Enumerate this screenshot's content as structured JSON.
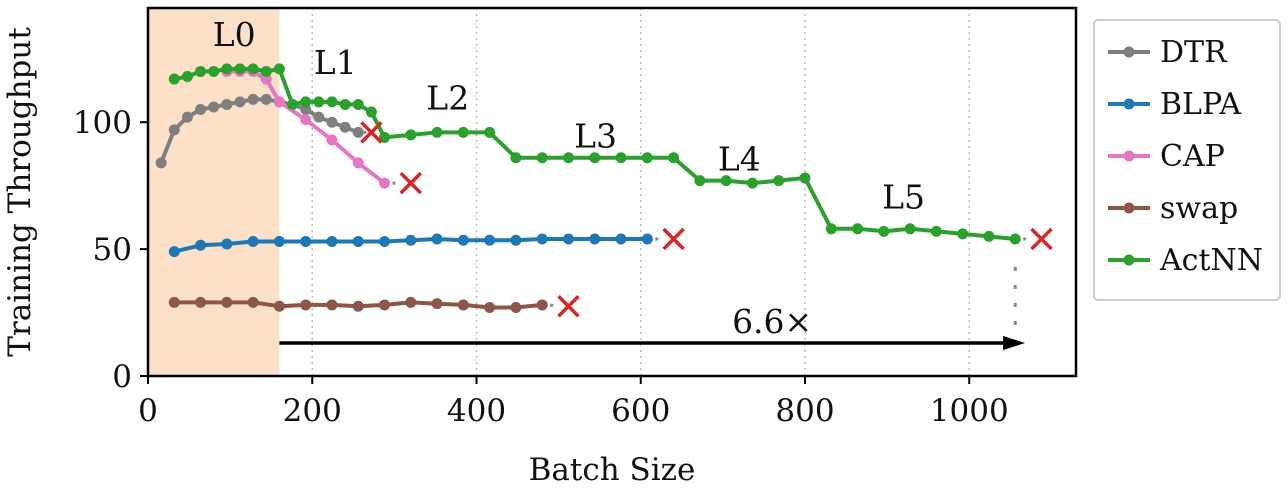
{
  "chart_data": {
    "type": "line",
    "xlabel": "Batch Size",
    "ylabel": "Training Throughput",
    "xlim": [
      0,
      1130
    ],
    "ylim": [
      0,
      145
    ],
    "xticks": [
      0,
      200,
      400,
      600,
      800,
      1000
    ],
    "yticks": [
      0,
      50,
      100
    ],
    "grid": "x-dotted",
    "legend_position": "right",
    "shaded_region": {
      "x": [
        0,
        160
      ],
      "color": "#fde0c8"
    },
    "colors": {
      "DTR": "#7f7f7f",
      "BLPA": "#1f77b4",
      "CAP": "#e377c2",
      "swap": "#8c564b",
      "ActNN": "#2ca02c",
      "oom_marker": "#d62728"
    },
    "series": [
      {
        "name": "DTR",
        "x": [
          16,
          32,
          48,
          64,
          80,
          96,
          112,
          128,
          144,
          160,
          176,
          192,
          208,
          224,
          240,
          256
        ],
        "y": [
          84,
          97,
          102,
          105,
          106,
          107,
          108,
          109,
          109,
          108,
          107,
          105,
          102,
          100,
          98,
          96
        ],
        "oom": [
          272,
          96
        ]
      },
      {
        "name": "BLPA",
        "x": [
          32,
          64,
          96,
          128,
          160,
          192,
          224,
          256,
          288,
          320,
          352,
          384,
          416,
          448,
          480,
          512,
          544,
          576,
          608
        ],
        "y": [
          49,
          51.5,
          52,
          53,
          53,
          53,
          53,
          53,
          53,
          53.5,
          54,
          53.5,
          53.5,
          53.5,
          54,
          54,
          54,
          54,
          54
        ],
        "oom": [
          640,
          54
        ]
      },
      {
        "name": "CAP",
        "x": [
          96,
          112,
          128,
          144,
          160,
          192,
          224,
          256,
          288
        ],
        "y": [
          120,
          120,
          120,
          117,
          108,
          101,
          93,
          84,
          76
        ],
        "oom": [
          320,
          76
        ]
      },
      {
        "name": "swap",
        "x": [
          32,
          64,
          96,
          128,
          160,
          192,
          224,
          256,
          288,
          320,
          352,
          384,
          416,
          448,
          480
        ],
        "y": [
          29,
          29,
          29,
          29,
          27.5,
          28,
          28,
          27.5,
          28,
          29,
          28.5,
          28,
          27,
          27,
          28
        ],
        "oom": [
          512,
          27.5
        ]
      },
      {
        "name": "ActNN",
        "x": [
          32,
          48,
          64,
          80,
          96,
          112,
          128,
          144,
          160,
          176,
          192,
          208,
          224,
          240,
          256,
          272,
          288,
          320,
          352,
          384,
          416,
          448,
          480,
          512,
          544,
          576,
          608,
          640,
          672,
          704,
          736,
          768,
          800,
          832,
          864,
          896,
          928,
          960,
          992,
          1024,
          1056
        ],
        "y": [
          117,
          118,
          120,
          120,
          121,
          121,
          121,
          120,
          121,
          107,
          108,
          108,
          108,
          107,
          107,
          104,
          94,
          95,
          96,
          96,
          96,
          86,
          86,
          86,
          86,
          86,
          86,
          86,
          77,
          77,
          76,
          77,
          78,
          58,
          58,
          57,
          58,
          57,
          56,
          55,
          54
        ],
        "oom": [
          1088,
          54
        ]
      }
    ],
    "annotations": [
      {
        "text": "L0",
        "x": 105,
        "y": 130
      },
      {
        "text": "L1",
        "x": 228,
        "y": 119
      },
      {
        "text": "L2",
        "x": 365,
        "y": 105
      },
      {
        "text": "L3",
        "x": 545,
        "y": 90
      },
      {
        "text": "L4",
        "x": 720,
        "y": 81
      },
      {
        "text": "L5",
        "x": 920,
        "y": 66
      },
      {
        "text": "6.6×",
        "x": 760,
        "y": 17
      }
    ],
    "arrow": {
      "from": [
        160,
        13
      ],
      "to": [
        1068,
        13
      ]
    },
    "dashed_marker": {
      "x": 1056,
      "y": [
        19,
        43
      ]
    }
  }
}
